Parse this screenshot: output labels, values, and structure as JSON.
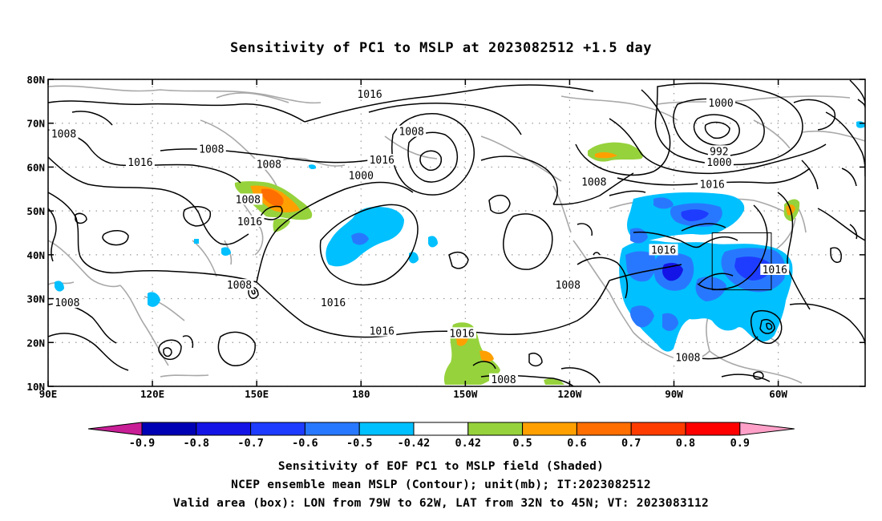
{
  "title": "Sensitivity of PC1 to MSLP at 2023082512 +1.5 day",
  "map": {
    "lon_min": 90,
    "lon_max": 325,
    "lat_min": 10,
    "lat_max": 80,
    "lon_ticks": [
      {
        "lon": 90,
        "label": "90E"
      },
      {
        "lon": 120,
        "label": "120E"
      },
      {
        "lon": 150,
        "label": "150E"
      },
      {
        "lon": 180,
        "label": "180"
      },
      {
        "lon": 210,
        "label": "150W"
      },
      {
        "lon": 240,
        "label": "120W"
      },
      {
        "lon": 270,
        "label": "90W"
      },
      {
        "lon": 300,
        "label": "60W"
      }
    ],
    "lat_ticks": [
      {
        "lat": 80,
        "label": "80N"
      },
      {
        "lat": 70,
        "label": "70N"
      },
      {
        "lat": 60,
        "label": "60N"
      },
      {
        "lat": 50,
        "label": "50N"
      },
      {
        "lat": 40,
        "label": "40N"
      },
      {
        "lat": 30,
        "label": "30N"
      },
      {
        "lat": 20,
        "label": "20N"
      },
      {
        "lat": 10,
        "label": "10N"
      }
    ],
    "box": {
      "lon_min": 281,
      "lon_max": 298,
      "lat_min": 32,
      "lat_max": 45
    },
    "contour_labels": [
      {
        "text": "1016",
        "lon": 182.5,
        "lat": 76.5
      },
      {
        "text": "1000",
        "lon": 283.5,
        "lat": 74.5
      },
      {
        "text": "1008",
        "lon": 94.5,
        "lat": 67.5
      },
      {
        "text": "1008",
        "lon": 194.5,
        "lat": 68.0
      },
      {
        "text": "992",
        "lon": 283.0,
        "lat": 63.5
      },
      {
        "text": "1000",
        "lon": 283.0,
        "lat": 61.0
      },
      {
        "text": "1008",
        "lon": 137.0,
        "lat": 64.0
      },
      {
        "text": "1016",
        "lon": 116.5,
        "lat": 61.0
      },
      {
        "text": "1008",
        "lon": 153.5,
        "lat": 60.5
      },
      {
        "text": "1016",
        "lon": 186.0,
        "lat": 61.5
      },
      {
        "text": "1000",
        "lon": 180.0,
        "lat": 58.0
      },
      {
        "text": "1008",
        "lon": 247.0,
        "lat": 56.5
      },
      {
        "text": "1016",
        "lon": 281.0,
        "lat": 56.0
      },
      {
        "text": "1008",
        "lon": 147.5,
        "lat": 52.5
      },
      {
        "text": "1016",
        "lon": 148.0,
        "lat": 47.5
      },
      {
        "text": "1016",
        "lon": 267.0,
        "lat": 41.0
      },
      {
        "text": "1016",
        "lon": 299.0,
        "lat": 36.5
      },
      {
        "text": "1008",
        "lon": 145.0,
        "lat": 33.0
      },
      {
        "text": "1008",
        "lon": 239.5,
        "lat": 33.0
      },
      {
        "text": "1016",
        "lon": 172.0,
        "lat": 29.0
      },
      {
        "text": "1008",
        "lon": 95.5,
        "lat": 29.0
      },
      {
        "text": "1016",
        "lon": 186.0,
        "lat": 22.5
      },
      {
        "text": "1016",
        "lon": 209.0,
        "lat": 22.0
      },
      {
        "text": "1008",
        "lon": 274.0,
        "lat": 16.5
      },
      {
        "text": "1008",
        "lon": 221.0,
        "lat": 11.5
      }
    ]
  },
  "colorbar": {
    "labels": [
      "-0.9",
      "-0.8",
      "-0.7",
      "-0.6",
      "-0.5",
      "-0.42",
      "0.42",
      "0.5",
      "0.6",
      "0.7",
      "0.8",
      "0.9"
    ],
    "colors": [
      "#0000b4",
      "#1414e6",
      "#1e3cff",
      "#2878ff",
      "#00c0ff",
      "#ffffff",
      "#96d23c",
      "#ffa000",
      "#ff6e00",
      "#ff3c00",
      "#ff0000"
    ],
    "low_color": "#c81e96",
    "high_color": "#ffa0c8"
  },
  "caption": {
    "line1": "Sensitivity of EOF PC1 to MSLP field (Shaded)",
    "line2": "NCEP ensemble mean MSLP (Contour); unit(mb); IT:2023082512",
    "line3": "Valid area (box): LON from 79W to 62W, LAT from 32N to 45N; VT: 2023083112"
  }
}
